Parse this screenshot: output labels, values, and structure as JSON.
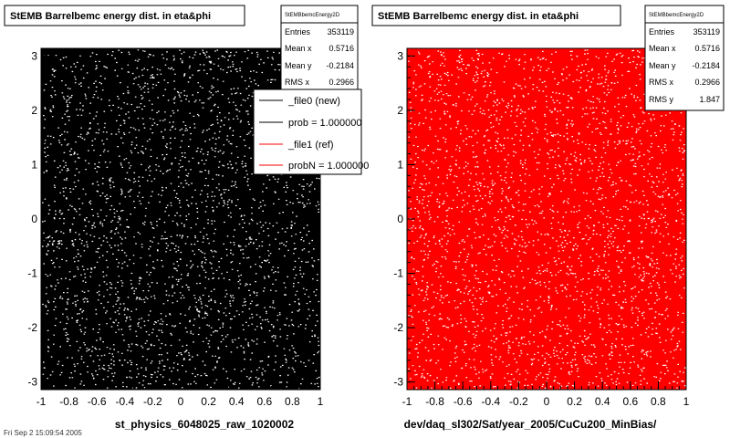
{
  "footer_date": "Fri Sep 2 15:09:54 2005",
  "chart_data": [
    {
      "type": "scatter",
      "title": "StEMB Barrelbemc energy dist. in eta&phi",
      "xlabel": "st_physics_6048025_raw_1020002",
      "ylabel": "",
      "xlim": [
        -1,
        1
      ],
      "ylim": [
        -3.14,
        3.14
      ],
      "xticks": [
        "-1",
        "-0.8",
        "-0.6",
        "-0.4",
        "-0.2",
        "0",
        "0.2",
        "0.4",
        "0.6",
        "0.8",
        "1"
      ],
      "yticks": [
        "-3",
        "-2",
        "-1",
        "0",
        "1",
        "2",
        "3"
      ],
      "marker_color": "#000000",
      "grid": false,
      "stats": {
        "header": "StEMBbemcEnergy2D",
        "rows": [
          {
            "label": "Entries",
            "value": "353119"
          },
          {
            "label": "Mean x",
            "value": "0.5716"
          },
          {
            "label": "Mean y",
            "value": "-0.2184"
          },
          {
            "label": "RMS x",
            "value": "0.2966"
          }
        ]
      },
      "legend": [
        {
          "label": "_file0 (new)",
          "color": "#000000"
        },
        {
          "label": "prob = 1.000000",
          "color": "#000000"
        },
        {
          "label": "_file1 (ref)",
          "color": "#ff0000"
        },
        {
          "label": "probN = 1.000000",
          "color": "#ff0000"
        }
      ],
      "legend_placement": "right"
    },
    {
      "type": "scatter",
      "title": "StEMB Barrelbemc energy dist. in eta&phi",
      "xlabel": "dev/daq_sl302/Sat/year_2005/CuCu200_MinBias/",
      "ylabel": "",
      "xlim": [
        -1,
        1
      ],
      "ylim": [
        -3.14,
        3.14
      ],
      "xticks": [
        "-1",
        "-0.8",
        "-0.6",
        "-0.4",
        "-0.2",
        "0",
        "0.2",
        "0.4",
        "0.6",
        "0.8",
        "1"
      ],
      "yticks": [
        "-3",
        "-2",
        "-1",
        "0",
        "1",
        "2",
        "3"
      ],
      "marker_color": "#ff0000",
      "grid": false,
      "stats": {
        "header": "StEMBbemcEnergy2D",
        "rows": [
          {
            "label": "Entries",
            "value": "353119"
          },
          {
            "label": "Mean x",
            "value": "0.5716"
          },
          {
            "label": "Mean y",
            "value": "-0.2184"
          },
          {
            "label": "RMS x",
            "value": "0.2966"
          },
          {
            "label": "RMS y",
            "value": "1.847"
          }
        ]
      }
    }
  ]
}
